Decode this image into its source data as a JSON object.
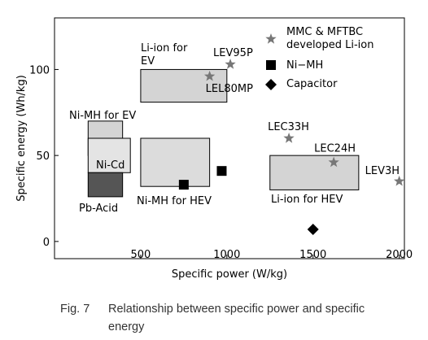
{
  "chart_data": {
    "type": "scatter",
    "x_label": "Specific power (W/kg)",
    "y_label": "Specific energy (Wh/kg)",
    "xlim": [
      0,
      2030
    ],
    "ylim": [
      -10,
      130
    ],
    "xticks": [
      500,
      1000,
      1500,
      2000
    ],
    "yticks": [
      0,
      50,
      100
    ],
    "regions": [
      {
        "name": "Li-ion for EV",
        "x": [
          500,
          1000
        ],
        "y": [
          81,
          100
        ],
        "color": "#d4d4d4"
      },
      {
        "name": "Ni-MH for EV",
        "x": [
          195,
          395
        ],
        "y": [
          50,
          70
        ],
        "color": "#d4d4d4"
      },
      {
        "name": "Ni-Cd",
        "x": [
          195,
          440
        ],
        "y": [
          40,
          60
        ],
        "color": "#e4e4e4"
      },
      {
        "name": "Pb-Acid",
        "x": [
          195,
          395
        ],
        "y": [
          26,
          40
        ],
        "color": "#555555"
      },
      {
        "name": "Ni-MH for HEV",
        "x": [
          500,
          900
        ],
        "y": [
          32,
          60
        ],
        "color": "#dcdcdc"
      },
      {
        "name": "Li-ion for HEV",
        "x": [
          1250,
          1765
        ],
        "y": [
          30,
          50
        ],
        "color": "#d4d4d4"
      }
    ],
    "series": [
      {
        "name": "MMC & MFTBC developed Li-ion",
        "marker": "star",
        "color": "#777777",
        "x": [
          1020,
          900,
          1360,
          1620,
          2000
        ],
        "values": [
          103,
          96,
          60,
          46,
          35
        ],
        "point_labels": [
          "LEV95P",
          "LEL80MP",
          "LEC33H",
          "LEC24H",
          "LEV3H"
        ]
      },
      {
        "name": "Ni−MH",
        "marker": "square",
        "color": "#000000",
        "x": [
          750,
          970
        ],
        "values": [
          33,
          41
        ]
      },
      {
        "name": "Capacitor",
        "marker": "diamond",
        "color": "#000000",
        "x": [
          1500
        ],
        "values": [
          7
        ]
      }
    ],
    "caption_label": "Fig. 7",
    "caption": "Relationship between specific power and specific energy"
  }
}
